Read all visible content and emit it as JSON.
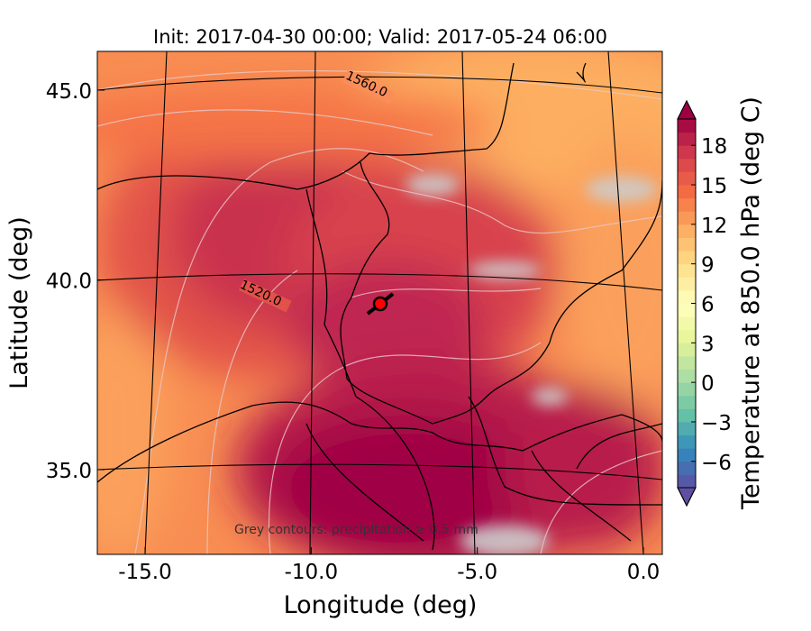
{
  "chart_data": {
    "type": "heatmap",
    "title": "Init: 2017-04-30 00:00; Valid: 2017-05-24 06:00",
    "xlabel": "Longitude (deg)",
    "ylabel": "Latitude (deg)",
    "xlim": [
      -15.9,
      0.3
    ],
    "ylim": [
      32.7,
      46.2
    ],
    "x_ticks": [
      -15.0,
      -10.0,
      -5.0,
      0.0
    ],
    "x_tick_labels": [
      "-15.0",
      "-10.0",
      "-5.0",
      "0.0"
    ],
    "y_ticks": [
      35.0,
      40.0,
      45.0
    ],
    "y_tick_labels": [
      "35.0",
      "40.0",
      "45.0"
    ],
    "colorbar": {
      "label": "Temperature at 850.0 hPa (deg C)",
      "min": -8,
      "max": 20,
      "step": 1,
      "ticks": [
        18,
        15,
        12,
        9,
        6,
        3,
        0,
        -3,
        -6
      ],
      "tick_labels": [
        "18",
        "15",
        "12",
        "9",
        "6",
        "3",
        "0",
        "−3",
        "−6"
      ],
      "extend": "both",
      "colormap": [
        "#5e4fa2",
        "#3288bd",
        "#66c2a5",
        "#abdda4",
        "#e6f598",
        "#ffffbf",
        "#fee08b",
        "#fdae61",
        "#f46d43",
        "#d53e4f",
        "#9e0142"
      ]
    },
    "contour_labels": [
      {
        "text": "1560.0",
        "lon": -7.0,
        "lat": 44.7
      },
      {
        "text": "1520.0",
        "lon": -11.3,
        "lat": 39.6
      }
    ],
    "marker": {
      "lon": -7.6,
      "lat": 39.3,
      "color": "#ff0000"
    },
    "annotation": "Grey contours: precipitation ≥ 0.5 mm",
    "precip_color": "#cccccc",
    "grid": true
  }
}
